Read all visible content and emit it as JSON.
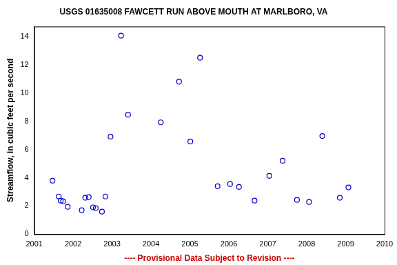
{
  "chart_data": {
    "type": "scatter",
    "title": "USGS 01635008 FAWCETT RUN ABOVE MOUTH AT MARLBORO, VA",
    "y_label": "Streamflow, in cubic feet per second",
    "footnote": "---- Provisional Data Subject to Revision ----",
    "x": [
      2001.47,
      2001.63,
      2001.68,
      2001.74,
      2001.86,
      2002.22,
      2002.31,
      2002.4,
      2002.51,
      2002.58,
      2002.74,
      2002.83,
      2002.96,
      2003.23,
      2003.41,
      2004.25,
      2004.72,
      2005.01,
      2005.26,
      2005.71,
      2006.03,
      2006.26,
      2006.66,
      2007.04,
      2007.38,
      2007.75,
      2008.06,
      2008.4,
      2008.85,
      2009.07
    ],
    "values": [
      3.79,
      2.67,
      2.38,
      2.33,
      1.94,
      1.7,
      2.58,
      2.63,
      1.9,
      1.85,
      1.6,
      2.67,
      6.9,
      14.05,
      8.46,
      7.92,
      10.79,
      6.56,
      12.49,
      3.4,
      3.55,
      3.35,
      2.38,
      4.13,
      5.2,
      2.43,
      2.28,
      6.95,
      2.58,
      3.31
    ],
    "color": "#0000cc",
    "marker": "circle",
    "xlim": [
      2001,
      2010
    ],
    "xticks": [
      2001,
      2002,
      2003,
      2004,
      2005,
      2006,
      2007,
      2008,
      2009,
      2010
    ],
    "ylim": [
      0,
      14.7
    ],
    "yticks": [
      0,
      2,
      4,
      6,
      8,
      10,
      12,
      14
    ],
    "grid": false
  }
}
